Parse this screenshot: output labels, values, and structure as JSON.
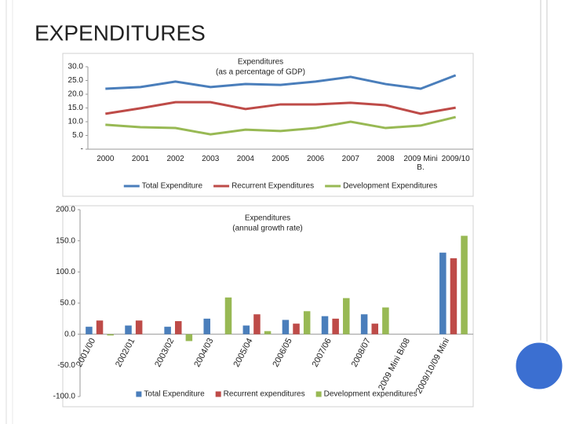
{
  "title": "EXPENDITURES",
  "chart_data": [
    {
      "type": "line",
      "title": "Expenditures",
      "subtitle": "(as a percentage of GDP)",
      "categories": [
        "2000",
        "2001",
        "2002",
        "2003",
        "2004",
        "2005",
        "2006",
        "2007",
        "2008",
        "2009 Mini B.",
        "2009/10"
      ],
      "series": [
        {
          "name": "Total Expenditure",
          "color": "#4a7ebb",
          "values": [
            22,
            22.6,
            24.6,
            22.6,
            23.7,
            23.4,
            24.6,
            26.3,
            23.7,
            22,
            26.9
          ]
        },
        {
          "name": "Recurrent Expenditures",
          "color": "#be4b48",
          "values": [
            12.9,
            14.9,
            17.1,
            17.1,
            14.6,
            16.3,
            16.3,
            16.9,
            16,
            12.9,
            15.1
          ]
        },
        {
          "name": "Development Expenditures",
          "color": "#98b954",
          "values": [
            8.9,
            8,
            7.7,
            5.4,
            7.1,
            6.6,
            7.7,
            10,
            7.7,
            8.6,
            11.7
          ]
        }
      ],
      "ylim": [
        0,
        30
      ],
      "yticks": [
        {
          "value": 0,
          "label": "-"
        },
        {
          "value": 5,
          "label": "5.0"
        },
        {
          "value": 10,
          "label": "10.0"
        },
        {
          "value": 15,
          "label": "15.0"
        },
        {
          "value": 20,
          "label": "20.0"
        },
        {
          "value": 25,
          "label": "25.0"
        },
        {
          "value": 30,
          "label": "30.0"
        }
      ],
      "legend": "bottom"
    },
    {
      "type": "bar",
      "title": "Expenditures",
      "subtitle": "(annual growth rate)",
      "categories": [
        "2001/00",
        "2002/01",
        "2003/02",
        "2004/03",
        "2005/04",
        "2006/05",
        "2007/06",
        "2008/07",
        "2009 Mini B/08",
        "2009/10/09 Mini"
      ],
      "series": [
        {
          "name": "Total Expenditure",
          "color": "#4a7ebb",
          "values": [
            12,
            14,
            12,
            25,
            14,
            23,
            29,
            32,
            null,
            131
          ]
        },
        {
          "name": "Recurrent expenditures",
          "color": "#be4b48",
          "values": [
            22,
            22,
            21,
            null,
            32,
            17,
            25,
            17,
            null,
            122
          ]
        },
        {
          "name": "Development expenditures",
          "color": "#98b954",
          "values": [
            -2,
            null,
            -11,
            59,
            5,
            37,
            58,
            43,
            null,
            158
          ]
        }
      ],
      "ylim": [
        -100,
        200
      ],
      "yticks": [
        {
          "value": -100,
          "label": "-100.0"
        },
        {
          "value": -50,
          "label": "-50.0"
        },
        {
          "value": 0,
          "label": "0.0"
        },
        {
          "value": 50,
          "label": "50.0"
        },
        {
          "value": 100,
          "label": "100.0"
        },
        {
          "value": 150,
          "label": "150.0"
        },
        {
          "value": 200,
          "label": "200.0"
        }
      ],
      "legend": "bottom"
    }
  ]
}
